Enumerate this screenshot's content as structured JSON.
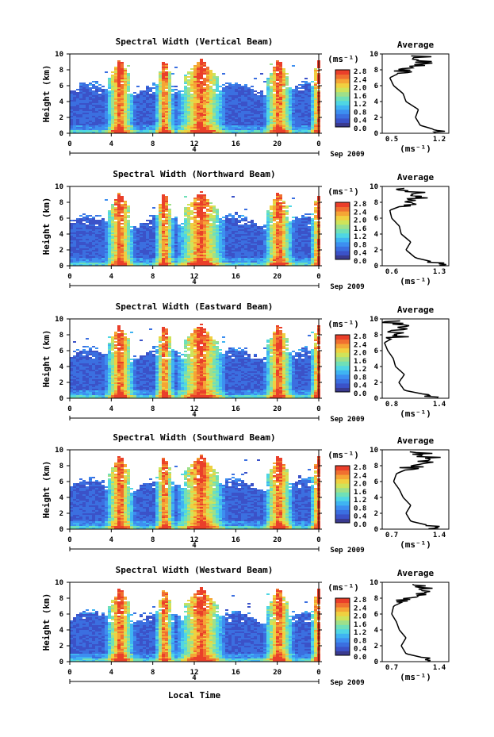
{
  "colors": [
    "#3a3a8f",
    "#3b52c8",
    "#3b6fe0",
    "#3d8ff0",
    "#3fb4f2",
    "#4fd6e4",
    "#6fe0b8",
    "#9fe08a",
    "#cfe35a",
    "#f0d040",
    "#f5a535",
    "#f07030",
    "#ea3f2a"
  ],
  "panels": [
    {
      "title": "Spectral Width (Vertical Beam)",
      "avg_ticks": [
        "0.5",
        "1.2"
      ]
    },
    {
      "title": "Spectral Width (Northward Beam)",
      "avg_ticks": [
        "0.6",
        "1.3"
      ]
    },
    {
      "title": "Spectral Width (Eastward Beam)",
      "avg_ticks": [
        "0.8",
        "1.4"
      ]
    },
    {
      "title": "Spectral Width (Southward Beam)",
      "avg_ticks": [
        "0.7",
        "1.4"
      ]
    },
    {
      "title": "Spectral Width (Westward Beam)",
      "avg_ticks": [
        "0.7",
        "1.4"
      ]
    }
  ],
  "labels": {
    "ylabel": "Height (km)",
    "y_ticks": [
      "0",
      "2",
      "4",
      "6",
      "8",
      "10"
    ],
    "x_ticks": [
      "0",
      "4",
      "8",
      "12",
      "16",
      "20",
      "0"
    ],
    "date_tick": "4",
    "date_label": "Sep 2009",
    "xlabel": "Local Time",
    "avg_title": "Average",
    "avg_y_ticks": [
      "0",
      "2",
      "4",
      "6",
      "8",
      "10"
    ],
    "unit": "(ms⁻¹)",
    "colorbar_ticks": [
      "2.8",
      "2.4",
      "2.0",
      "1.6",
      "1.2",
      "0.8",
      "0.4",
      "0.0"
    ]
  },
  "chart_data": {
    "type": "heatmap",
    "x_range_hours": [
      0,
      24
    ],
    "y_range_km": [
      0,
      10
    ],
    "colorbar_range": [
      0.0,
      3.0
    ],
    "enhanced_times_hours": [
      4.7,
      9.0,
      12.5,
      20.0,
      23.8
    ],
    "averages": [
      {
        "name": "Vertical Beam",
        "x_range": [
          0.5,
          1.2
        ],
        "heights": [
          0.3,
          1,
          2,
          3,
          4,
          5,
          6,
          7,
          8,
          9,
          9.6
        ],
        "values": [
          1.1,
          0.9,
          0.85,
          0.88,
          0.75,
          0.72,
          0.62,
          0.58,
          0.75,
          0.95,
          0.9
        ]
      },
      {
        "name": "Northward Beam",
        "x_range": [
          0.6,
          1.3
        ],
        "heights": [
          0.3,
          1,
          2,
          3,
          4,
          5,
          6,
          7,
          8,
          9,
          9.6
        ],
        "values": [
          1.2,
          0.95,
          0.85,
          0.9,
          0.8,
          0.78,
          0.7,
          0.68,
          0.9,
          1.0,
          0.85
        ]
      },
      {
        "name": "Eastward Beam",
        "x_range": [
          0.8,
          1.4
        ],
        "heights": [
          0.3,
          1,
          2,
          3,
          4,
          5,
          6,
          7,
          8,
          9,
          9.6
        ],
        "values": [
          1.25,
          1.0,
          0.95,
          1.0,
          0.92,
          0.9,
          0.85,
          0.82,
          0.95,
          1.0,
          0.9
        ]
      },
      {
        "name": "Southward Beam",
        "x_range": [
          0.7,
          1.4
        ],
        "heights": [
          0.3,
          1,
          2,
          3,
          4,
          5,
          6,
          7,
          8,
          9,
          9.6
        ],
        "values": [
          1.25,
          1.0,
          0.95,
          1.0,
          0.92,
          0.88,
          0.82,
          0.85,
          1.05,
          1.2,
          1.1
        ]
      },
      {
        "name": "Westward Beam",
        "x_range": [
          0.7,
          1.4
        ],
        "heights": [
          0.3,
          1,
          2,
          3,
          4,
          5,
          6,
          7,
          8,
          9,
          9.6
        ],
        "values": [
          1.2,
          0.95,
          0.9,
          0.95,
          0.88,
          0.85,
          0.8,
          0.82,
          1.0,
          1.15,
          1.05
        ]
      }
    ]
  }
}
